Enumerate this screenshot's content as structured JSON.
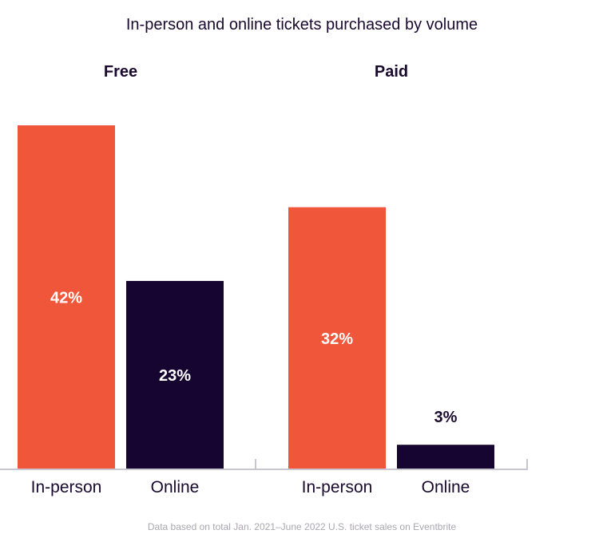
{
  "chart_data": {
    "type": "bar",
    "title": "In-person and online tickets purchased by volume",
    "groups": [
      {
        "name": "Free",
        "categories": [
          "In-person",
          "Online"
        ],
        "values": [
          42,
          23
        ]
      },
      {
        "name": "Paid",
        "categories": [
          "In-person",
          "Online"
        ],
        "values": [
          32,
          3
        ]
      }
    ],
    "unit": "%",
    "ylim": [
      0,
      42
    ],
    "grid": false,
    "colors": {
      "In-person": "#f0573a",
      "Online": "#160530"
    },
    "footnote": "Data based on total Jan. 2021–June 2022 U.S. ticket sales on Eventbrite"
  }
}
